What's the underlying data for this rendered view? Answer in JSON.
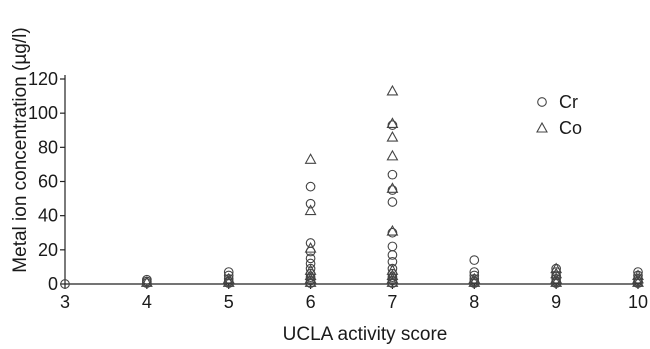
{
  "chart_data": {
    "type": "scatter",
    "xlabel": "UCLA activity score",
    "ylabel": "Metal ion concentration (µg/l)",
    "x_ticks": [
      3,
      4,
      5,
      6,
      7,
      8,
      9,
      10
    ],
    "y_ticks": [
      0,
      20,
      40,
      60,
      80,
      100,
      120
    ],
    "xlim": [
      3,
      10
    ],
    "ylim": [
      0,
      120
    ],
    "grid": false,
    "legend_position": "top-right",
    "series": [
      {
        "name": "Cr",
        "marker": "circle",
        "color": "#444444",
        "points": [
          [
            3,
            0
          ],
          [
            4,
            0.5
          ],
          [
            4,
            1.5
          ],
          [
            4,
            2.5
          ],
          [
            5,
            0.5
          ],
          [
            5,
            1.5
          ],
          [
            5,
            3
          ],
          [
            5,
            5
          ],
          [
            5,
            7
          ],
          [
            6,
            0.5
          ],
          [
            6,
            2
          ],
          [
            6,
            4
          ],
          [
            6,
            6
          ],
          [
            6,
            9
          ],
          [
            6,
            12
          ],
          [
            6,
            15
          ],
          [
            6,
            19
          ],
          [
            6,
            24
          ],
          [
            6,
            47
          ],
          [
            6,
            57
          ],
          [
            7,
            0.5
          ],
          [
            7,
            2
          ],
          [
            7,
            4
          ],
          [
            7,
            6
          ],
          [
            7,
            9
          ],
          [
            7,
            13
          ],
          [
            7,
            17
          ],
          [
            7,
            22
          ],
          [
            7,
            30
          ],
          [
            7,
            48
          ],
          [
            7,
            55
          ],
          [
            7,
            64
          ],
          [
            7,
            93
          ],
          [
            8,
            0.5
          ],
          [
            8,
            1.5
          ],
          [
            8,
            3
          ],
          [
            8,
            5
          ],
          [
            8,
            7
          ],
          [
            8,
            14
          ],
          [
            9,
            0.5
          ],
          [
            9,
            1.5
          ],
          [
            9,
            3
          ],
          [
            9,
            5
          ],
          [
            9,
            7
          ],
          [
            9,
            9
          ],
          [
            10,
            0.5
          ],
          [
            10,
            1.5
          ],
          [
            10,
            3
          ],
          [
            10,
            5
          ],
          [
            10,
            7
          ]
        ]
      },
      {
        "name": "Co",
        "marker": "triangle",
        "color": "#444444",
        "points": [
          [
            4,
            1
          ],
          [
            5,
            1
          ],
          [
            5,
            3
          ],
          [
            6,
            1
          ],
          [
            6,
            3
          ],
          [
            6,
            5
          ],
          [
            6,
            8
          ],
          [
            6,
            21
          ],
          [
            6,
            43
          ],
          [
            6,
            73
          ],
          [
            7,
            1
          ],
          [
            7,
            3
          ],
          [
            7,
            5
          ],
          [
            7,
            8
          ],
          [
            7,
            31
          ],
          [
            7,
            56
          ],
          [
            7,
            75
          ],
          [
            7,
            86
          ],
          [
            7,
            94
          ],
          [
            7,
            113
          ],
          [
            8,
            1
          ],
          [
            8,
            3
          ],
          [
            9,
            1
          ],
          [
            9,
            3
          ],
          [
            9,
            6
          ],
          [
            9,
            9
          ],
          [
            10,
            1
          ],
          [
            10,
            3
          ],
          [
            10,
            5
          ]
        ]
      }
    ]
  }
}
